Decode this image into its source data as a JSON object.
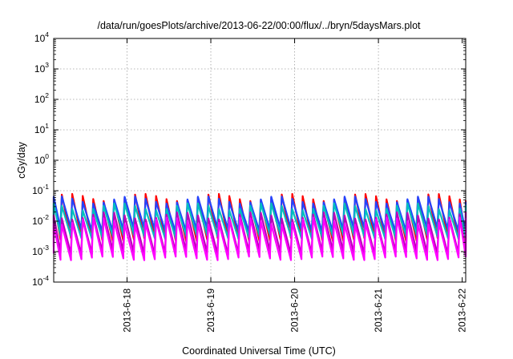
{
  "chart_data": {
    "type": "line",
    "title": "/data/run/goesPlots/archive/2013-06-22/00:00/flux/../bryn/5daysMars.plot",
    "xlabel": "Coordinated Universal Time (UTC)",
    "ylabel": "cGy/day",
    "y_scale": "log",
    "ylim": [
      0.0001,
      10000
    ],
    "y_ticks": [
      {
        "base": "10",
        "exp": "-4"
      },
      {
        "base": "10",
        "exp": "-3"
      },
      {
        "base": "10",
        "exp": "-2"
      },
      {
        "base": "10",
        "exp": "-1"
      },
      {
        "base": "10",
        "exp": "0"
      },
      {
        "base": "10",
        "exp": "1"
      },
      {
        "base": "10",
        "exp": "2"
      },
      {
        "base": "10",
        "exp": "3"
      },
      {
        "base": "10",
        "exp": "4"
      }
    ],
    "x_range_days": [
      "2013-06-17 03:00",
      "2013-06-22 01:00"
    ],
    "x_ticks": [
      "2013-6-18",
      "2013-6-19",
      "2013-6-20",
      "2013-6-21",
      "2013-6-22"
    ],
    "grid": true,
    "pattern": {
      "description": "sawtooth",
      "cycles_per_day": 8,
      "period_hours": 3
    },
    "series": [
      {
        "color": "#ff0000",
        "peak": 0.06,
        "trough": 0.0025
      },
      {
        "color": "#2244ff",
        "peak": 0.05,
        "trough": 0.005
      },
      {
        "color": "#00bfbf",
        "peak": 0.03,
        "trough": 0.003
      },
      {
        "color": "#bb00bb",
        "peak": 0.015,
        "trough": 0.0009
      },
      {
        "color": "#ff00ff",
        "peak": 0.01,
        "trough": 0.0006
      }
    ]
  }
}
